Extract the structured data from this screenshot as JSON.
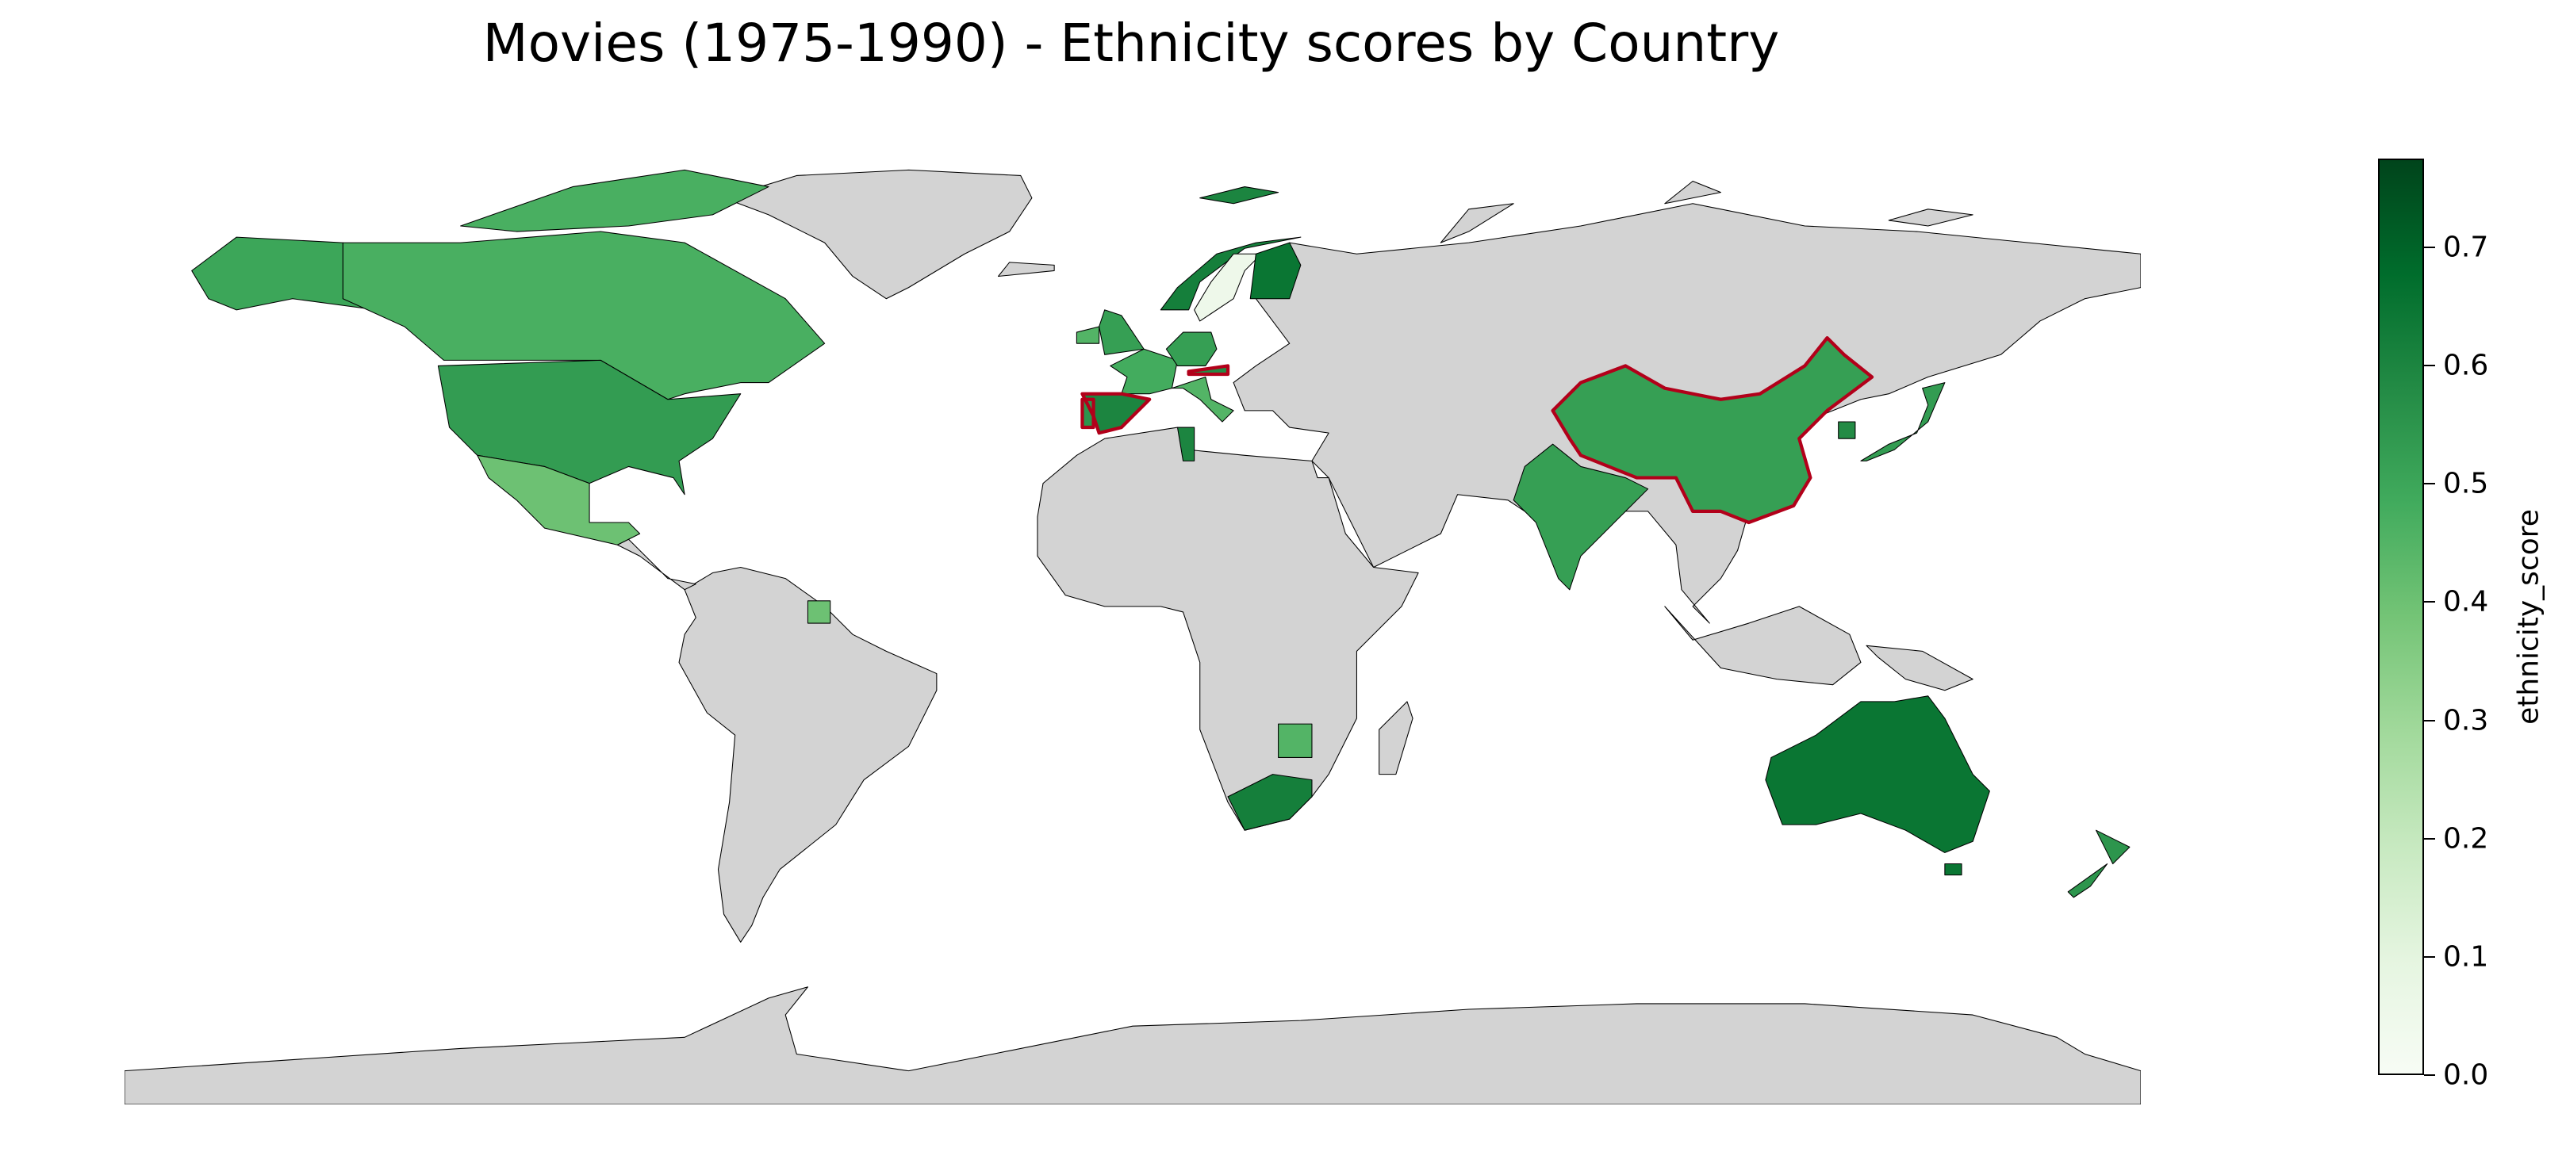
{
  "title": "Movies (1975-1990) - Ethnicity scores by Country",
  "colorbar": {
    "label": "ethnicity_score",
    "min": 0.0,
    "max": 0.775,
    "ticks": [
      "0.0",
      "0.1",
      "0.2",
      "0.3",
      "0.4",
      "0.5",
      "0.6",
      "0.7"
    ],
    "color_low": "#f7fcf5",
    "color_high": "#00441b"
  },
  "colors": {
    "no_data": "#d3d3d3",
    "highlight_outline": "#b2001a",
    "border": "#000000",
    "ocean": "#ffffff"
  },
  "map": {
    "projection": "plate-carree",
    "country_scores": [
      {
        "country": "Canada",
        "score": 0.47
      },
      {
        "country": "Alaska (USA)",
        "score": 0.5
      },
      {
        "country": "United States",
        "score": 0.53
      },
      {
        "country": "Mexico",
        "score": 0.4
      },
      {
        "country": "Greenland",
        "score": null
      },
      {
        "country": "Svalbard",
        "score": 0.6
      },
      {
        "country": "Norway",
        "score": 0.62
      },
      {
        "country": "Sweden",
        "score": 0.05
      },
      {
        "country": "Finland",
        "score": 0.65
      },
      {
        "country": "United Kingdom",
        "score": 0.52
      },
      {
        "country": "Ireland",
        "score": 0.45
      },
      {
        "country": "France",
        "score": 0.48
      },
      {
        "country": "Germany",
        "score": 0.52
      },
      {
        "country": "Spain",
        "score": 0.6
      },
      {
        "country": "Portugal",
        "score": 0.55
      },
      {
        "country": "Italy",
        "score": 0.45
      },
      {
        "country": "Austria",
        "score": 0.58
      },
      {
        "country": "Tunisia",
        "score": 0.6
      },
      {
        "country": "India",
        "score": 0.52
      },
      {
        "country": "China",
        "score": 0.52
      },
      {
        "country": "Japan",
        "score": 0.53
      },
      {
        "country": "South Korea",
        "score": 0.58
      },
      {
        "country": "Australia",
        "score": 0.65
      },
      {
        "country": "New Zealand",
        "score": 0.55
      },
      {
        "country": "South Africa",
        "score": 0.62
      },
      {
        "country": "Zimbabwe",
        "score": 0.45
      },
      {
        "country": "Suriname",
        "score": 0.4
      }
    ],
    "highlighted": [
      "China",
      "Spain",
      "Portugal",
      "Austria"
    ]
  }
}
